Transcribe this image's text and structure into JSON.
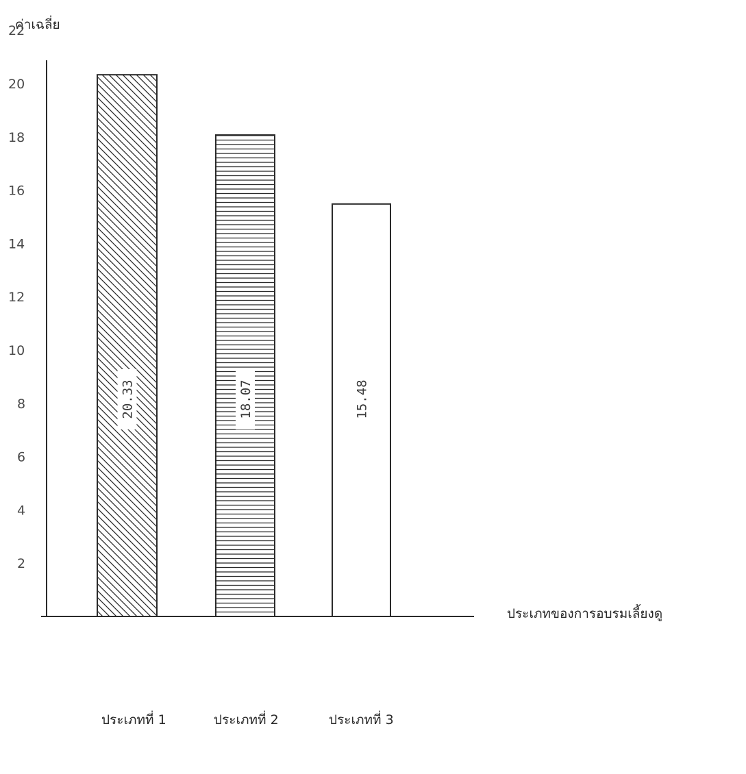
{
  "chart_data": {
    "type": "bar",
    "ylabel": "ค่าเฉลี่ย",
    "xlabel": "ประเภทของการอบรมเลี้ยงดู",
    "categories": [
      "ประเภทที่ 1",
      "ประเภทที่ 2",
      "ประเภทที่ 3"
    ],
    "values": [
      20.33,
      18.07,
      15.48
    ],
    "value_labels": [
      "20.33",
      "18.07",
      "15.48"
    ],
    "y_ticks": [
      "2",
      "4",
      "6",
      "8",
      "10",
      "12",
      "14",
      "16",
      "18",
      "20",
      "22"
    ],
    "ylim": [
      0,
      24
    ],
    "grid": false,
    "legend": "none",
    "bar_fills": [
      "diagonal-hatch",
      "horizontal-hatch",
      "none"
    ]
  }
}
